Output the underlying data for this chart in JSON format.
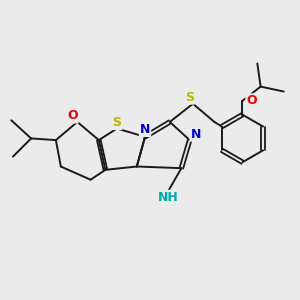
{
  "background_color": "#ebebeb",
  "bond_color": "#1a1a1a",
  "atom_colors": {
    "S": "#b8b800",
    "N": "#0000cc",
    "O": "#ee0000",
    "NH": "#00aaaa",
    "C": "#1a1a1a"
  },
  "figsize": [
    3.0,
    3.0
  ],
  "dpi": 100
}
